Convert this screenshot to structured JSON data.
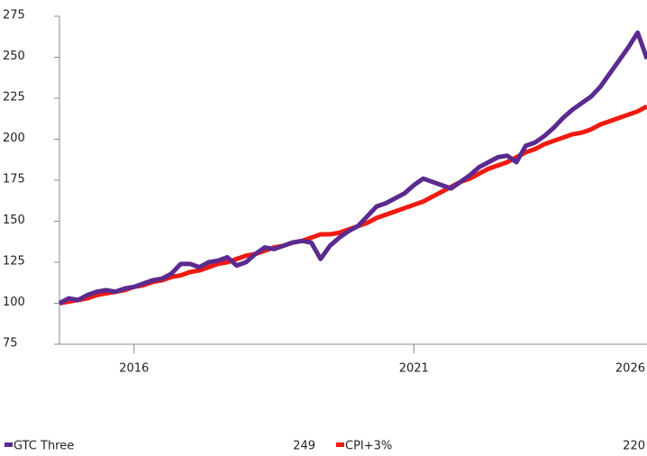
{
  "chart_data": {
    "type": "line",
    "categories": [
      null,
      null,
      null,
      null,
      null,
      null,
      null,
      null,
      "2016",
      null,
      null,
      null,
      null,
      null,
      null,
      null,
      null,
      null,
      null,
      null,
      null,
      null,
      null,
      null,
      null,
      null,
      null,
      null,
      null,
      null,
      null,
      null,
      null,
      null,
      null,
      null,
      null,
      null,
      "2021",
      null,
      null,
      null,
      null,
      null,
      null,
      null,
      null,
      null,
      null,
      null,
      null,
      null,
      null,
      null,
      null,
      null,
      null,
      null,
      null,
      null,
      null,
      null,
      null,
      "2026"
    ],
    "series": [
      {
        "name": "GTC Three",
        "color": "#5b2a8f",
        "values": [
          100,
          103,
          102,
          105,
          107,
          108,
          107,
          109,
          110,
          112,
          114,
          115,
          118,
          124,
          124,
          122,
          125,
          126,
          128,
          123,
          125,
          130,
          134,
          133,
          135,
          137,
          138,
          137,
          127,
          135,
          140,
          144,
          147,
          153,
          159,
          161,
          164,
          167,
          172,
          176,
          174,
          172,
          170,
          174,
          178,
          183,
          186,
          189,
          190,
          186,
          196,
          198,
          202,
          207,
          213,
          218,
          222,
          226,
          232,
          240,
          248,
          256,
          265,
          249
        ]
      },
      {
        "name": "CPI+3%",
        "color": "#f01a10",
        "values": [
          100,
          101,
          102,
          103,
          105,
          106,
          107,
          108,
          110,
          111,
          113,
          114,
          116,
          117,
          119,
          120,
          122,
          124,
          125,
          127,
          129,
          130,
          132,
          134,
          135,
          137,
          138,
          140,
          142,
          142,
          143,
          145,
          147,
          149,
          152,
          154,
          156,
          158,
          160,
          162,
          165,
          168,
          171,
          174,
          176,
          179,
          182,
          184,
          186,
          189,
          192,
          194,
          197,
          199,
          201,
          203,
          204,
          206,
          209,
          211,
          213,
          215,
          217,
          220
        ]
      }
    ],
    "ylim": [
      75,
      275
    ],
    "yticks": [
      75,
      100,
      125,
      150,
      175,
      200,
      225,
      250,
      275
    ],
    "grid": false,
    "legend": "bottom"
  }
}
